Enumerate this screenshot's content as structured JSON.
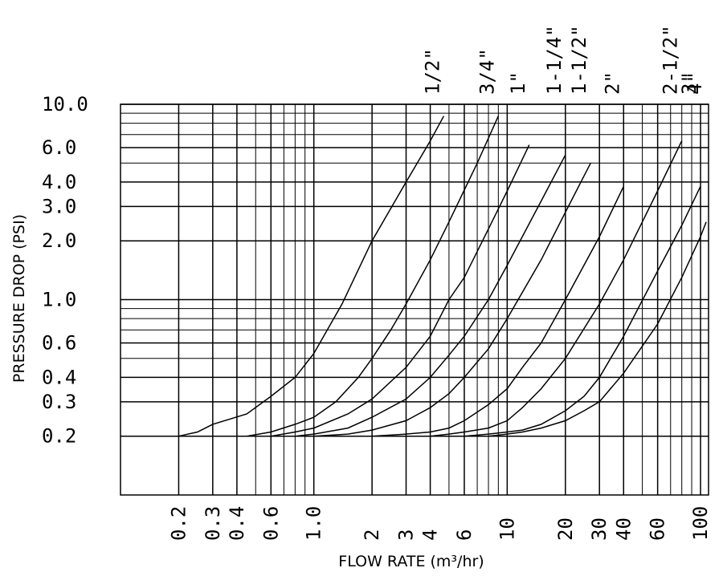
{
  "chart_data": {
    "type": "line",
    "title": "",
    "xlabel": "FLOW RATE (m³/hr)",
    "ylabel": "PRESSURE DROP (PSI)",
    "x_scale": "log",
    "y_scale": "log",
    "xlim": [
      0.1,
      110
    ],
    "ylim": [
      0.1,
      10
    ],
    "grid": true,
    "x_ticks": [
      {
        "value": 0.2,
        "label": "0.2"
      },
      {
        "value": 0.3,
        "label": "0.3"
      },
      {
        "value": 0.4,
        "label": "0.4"
      },
      {
        "value": 0.6,
        "label": "0.6"
      },
      {
        "value": 1.0,
        "label": "1.0"
      },
      {
        "value": 2,
        "label": "2"
      },
      {
        "value": 3,
        "label": "3"
      },
      {
        "value": 4,
        "label": "4"
      },
      {
        "value": 6,
        "label": "6"
      },
      {
        "value": 10,
        "label": "10"
      },
      {
        "value": 20,
        "label": "20"
      },
      {
        "value": 30,
        "label": "30"
      },
      {
        "value": 40,
        "label": "40"
      },
      {
        "value": 60,
        "label": "60"
      },
      {
        "value": 100,
        "label": "100"
      }
    ],
    "y_ticks": [
      {
        "value": 0.2,
        "label": "0.2"
      },
      {
        "value": 0.3,
        "label": "0.3"
      },
      {
        "value": 0.4,
        "label": "0.4"
      },
      {
        "value": 0.6,
        "label": "0.6"
      },
      {
        "value": 1.0,
        "label": "1.0"
      },
      {
        "value": 2.0,
        "label": "2.0"
      },
      {
        "value": 3.0,
        "label": "3.0"
      },
      {
        "value": 4.0,
        "label": "4.0"
      },
      {
        "value": 6.0,
        "label": "6.0"
      },
      {
        "value": 10.0,
        "label": "10.0"
      }
    ],
    "x_minor_gridlines": [
      0.5,
      0.7,
      0.8,
      0.9,
      5,
      7,
      8,
      9,
      50,
      70,
      80,
      90
    ],
    "y_minor_gridlines": [
      0.5,
      0.7,
      0.8,
      0.9,
      5,
      7,
      8,
      9
    ],
    "series": [
      {
        "name": "1/2\"",
        "x": [
          0.2,
          0.25,
          0.3,
          0.45,
          0.6,
          0.8,
          1.0,
          1.4,
          2.0,
          3.0,
          4.0,
          4.7
        ],
        "y": [
          0.2,
          0.21,
          0.23,
          0.26,
          0.32,
          0.4,
          0.53,
          0.95,
          2.0,
          4.0,
          6.5,
          8.7
        ]
      },
      {
        "name": "3/4\"",
        "x": [
          0.45,
          0.6,
          0.8,
          1.0,
          1.3,
          1.7,
          2.0,
          2.5,
          3.0,
          4.0,
          5.0,
          7.0,
          9.0
        ],
        "y": [
          0.2,
          0.21,
          0.23,
          0.25,
          0.3,
          0.4,
          0.5,
          0.7,
          0.95,
          1.6,
          2.5,
          5.0,
          8.7
        ]
      },
      {
        "name": "1\"",
        "x": [
          0.6,
          0.8,
          1.0,
          1.5,
          2.0,
          3.0,
          4.0,
          5.0,
          6.0,
          8.0,
          10.0,
          13.0
        ],
        "y": [
          0.2,
          0.21,
          0.22,
          0.26,
          0.31,
          0.45,
          0.65,
          1.0,
          1.3,
          2.3,
          3.6,
          6.2
        ]
      },
      {
        "name": "1-1/4\"",
        "x": [
          0.8,
          1.0,
          1.5,
          2.0,
          3.0,
          4.0,
          5.0,
          6.0,
          8.0,
          10.0,
          15.0,
          20.0
        ],
        "y": [
          0.2,
          0.205,
          0.22,
          0.25,
          0.31,
          0.4,
          0.52,
          0.65,
          1.0,
          1.5,
          3.2,
          5.5
        ]
      },
      {
        "name": "1-1/2\"",
        "x": [
          1.0,
          1.5,
          2.0,
          3.0,
          4.0,
          5.0,
          6.0,
          8.0,
          10.0,
          15.0,
          20.0,
          27.0
        ],
        "y": [
          0.2,
          0.205,
          0.215,
          0.24,
          0.28,
          0.33,
          0.4,
          0.56,
          0.8,
          1.6,
          2.8,
          5.0
        ]
      },
      {
        "name": "2\"",
        "x": [
          2.0,
          3.0,
          4.0,
          5.0,
          6.0,
          8.0,
          10.0,
          12.0,
          15.0,
          20.0,
          30.0,
          40.0
        ],
        "y": [
          0.2,
          0.205,
          0.21,
          0.22,
          0.24,
          0.29,
          0.35,
          0.45,
          0.6,
          1.0,
          2.1,
          3.8
        ]
      },
      {
        "name": "2-1/2\"",
        "x": [
          4.0,
          5.0,
          6.0,
          8.0,
          10.0,
          12.0,
          15.0,
          20.0,
          30.0,
          40.0,
          60.0,
          80.0
        ],
        "y": [
          0.2,
          0.205,
          0.21,
          0.22,
          0.24,
          0.28,
          0.35,
          0.5,
          0.95,
          1.6,
          3.6,
          6.5
        ]
      },
      {
        "name": "3\"",
        "x": [
          6.0,
          8.0,
          10.0,
          12.0,
          15.0,
          20.0,
          25.0,
          30.0,
          40.0,
          60.0,
          80.0,
          100.0
        ],
        "y": [
          0.2,
          0.205,
          0.21,
          0.215,
          0.23,
          0.27,
          0.32,
          0.4,
          0.65,
          1.4,
          2.4,
          3.8
        ]
      },
      {
        "name": "4\"",
        "x": [
          8.0,
          10.0,
          12.0,
          15.0,
          20.0,
          25.0,
          30.0,
          40.0,
          60.0,
          80.0,
          100.0,
          107.0
        ],
        "y": [
          0.2,
          0.205,
          0.21,
          0.22,
          0.24,
          0.27,
          0.3,
          0.42,
          0.75,
          1.3,
          2.1,
          2.5
        ]
      }
    ]
  }
}
